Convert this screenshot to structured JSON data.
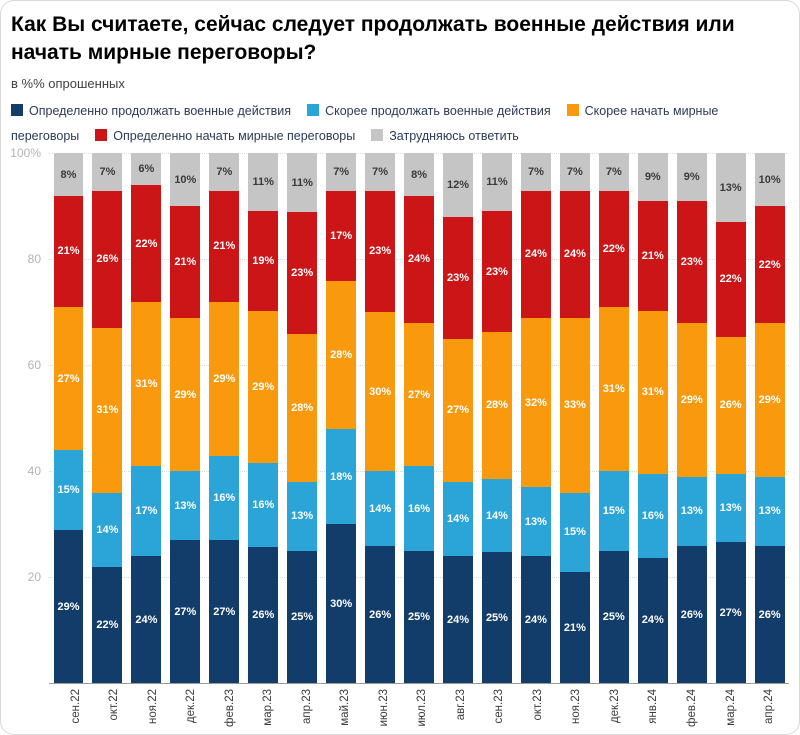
{
  "header": {
    "title": "Как Вы считаете, сейчас следует продолжать военные действия или начать мирные переговоры?",
    "subtitle": "в %% опрошенных"
  },
  "chart_data": {
    "type": "bar",
    "stacked": true,
    "title": "Как Вы считаете, сейчас следует продолжать военные действия или начать мирные переговоры?",
    "subtitle": "в %% опрошенных",
    "legend_position": "top",
    "grid": true,
    "ylim": [
      0,
      100
    ],
    "value_suffix": "%",
    "yticks": [
      {
        "label": "100%",
        "value": 100
      },
      {
        "label": "80",
        "value": 80
      },
      {
        "label": "60",
        "value": 60
      },
      {
        "label": "40",
        "value": 40
      },
      {
        "label": "20",
        "value": 20
      }
    ],
    "categories": [
      "сен.22",
      "окт.22",
      "ноя.22",
      "дек.22",
      "фев.23",
      "мар.23",
      "апр.23",
      "май.23",
      "июн.23",
      "июл.23",
      "авг.23",
      "сен.23",
      "окт.23",
      "ноя.23",
      "дек.23",
      "янв.24",
      "фев.24",
      "мар.24",
      "апр.24"
    ],
    "series": [
      {
        "name": "Определенно продолжать военные действия",
        "color": "#123c69",
        "label_color": "#ffffff",
        "values": [
          29,
          22,
          24,
          27,
          27,
          26,
          25,
          30,
          26,
          25,
          24,
          25,
          24,
          21,
          25,
          24,
          26,
          27,
          26
        ]
      },
      {
        "name": "Скорее продолжать военные действия",
        "color": "#2ba4d8",
        "label_color": "#ffffff",
        "values": [
          15,
          14,
          17,
          13,
          16,
          16,
          13,
          18,
          14,
          16,
          14,
          14,
          13,
          15,
          15,
          16,
          13,
          13,
          13
        ]
      },
      {
        "name": "Скорее начать мирные переговоры",
        "color": "#f99a0e",
        "label_color": "#ffffff",
        "values": [
          27,
          31,
          31,
          29,
          29,
          29,
          28,
          28,
          30,
          27,
          27,
          28,
          32,
          33,
          31,
          31,
          29,
          26,
          29
        ]
      },
      {
        "name": "Определенно начать мирные переговоры",
        "color": "#cb1517",
        "label_color": "#ffffff",
        "values": [
          21,
          26,
          22,
          21,
          21,
          19,
          23,
          17,
          23,
          24,
          23,
          23,
          24,
          24,
          22,
          21,
          23,
          22,
          22
        ]
      },
      {
        "name": "Затрудняюсь ответить",
        "color": "#c5c5c5",
        "label_color": "#3a3a3a",
        "values": [
          8,
          7,
          6,
          10,
          7,
          11,
          11,
          7,
          7,
          8,
          12,
          11,
          7,
          7,
          7,
          9,
          9,
          13,
          10
        ]
      }
    ]
  }
}
